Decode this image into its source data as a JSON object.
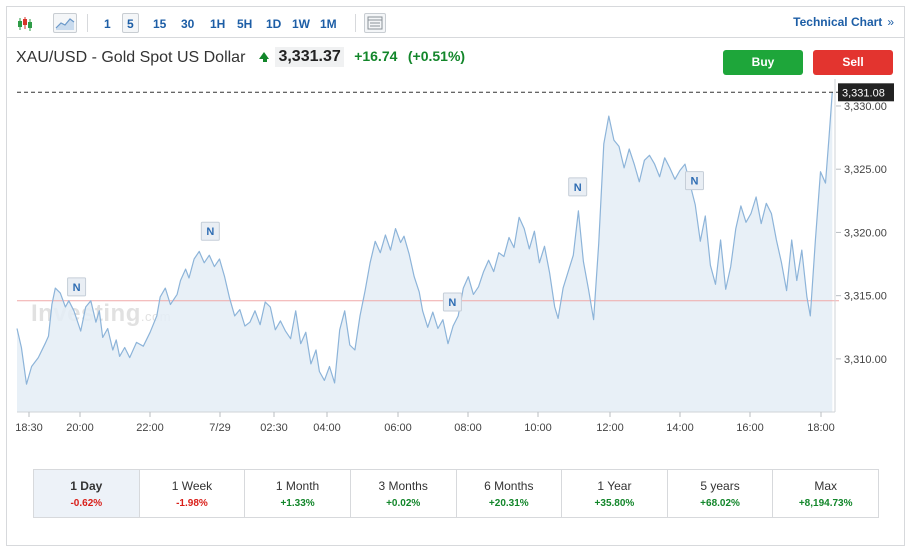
{
  "toolbar": {
    "chart_type_icon": "candlestick-icon",
    "area_icon": "area-chart-icon",
    "timeframes": [
      "1",
      "5",
      "15",
      "30",
      "1H",
      "5H",
      "1D",
      "1W",
      "1M"
    ],
    "active_timeframe": "5",
    "indicator_icon": "indicators-icon",
    "technical_chart_label": "Technical Chart",
    "technical_chart_chevron": "»"
  },
  "instrument": {
    "name": "XAU/USD - Gold Spot US Dollar",
    "price": "3,331.37",
    "change": "+16.74",
    "change_pct": "(+0.51%)"
  },
  "buttons": {
    "buy": "Buy",
    "sell": "Sell"
  },
  "watermark": {
    "main": "Investing",
    "suffix": ".com"
  },
  "news_marker_label": "N",
  "colors": {
    "accent": "#1d5ea6",
    "positive": "#12862a",
    "negative": "#d91e18",
    "buy": "#1ea63a",
    "sell": "#e3342f",
    "line": "#8db4d9",
    "area": "#e4edf6",
    "previous_close": "#f0a9a9"
  },
  "chart_data": {
    "type": "area",
    "x_tick_labels": [
      "18:30",
      "20:00",
      "22:00",
      "7/29",
      "02:30",
      "04:00",
      "06:00",
      "08:00",
      "10:00",
      "12:00",
      "14:00",
      "16:00",
      "18:00"
    ],
    "y_tick_labels": [
      "3,330.00",
      "3,325.00",
      "3,320.00",
      "3,315.00",
      "3,310.00"
    ],
    "ylim": [
      3305.8,
      3331.5
    ],
    "current_price_label": "3,331.08",
    "current_price": 3331.08,
    "previous_close": 3314.6,
    "x_range_hours": [
      18.17,
      42.3
    ],
    "series": [
      {
        "values": [
          [
            18.17,
            3312.4
          ],
          [
            18.3,
            3310.9
          ],
          [
            18.45,
            3308.0
          ],
          [
            18.6,
            3309.4
          ],
          [
            18.8,
            3310.1
          ],
          [
            19.0,
            3311.2
          ],
          [
            19.1,
            3311.8
          ],
          [
            19.2,
            3314.3
          ],
          [
            19.3,
            3315.6
          ],
          [
            19.45,
            3315.2
          ],
          [
            19.6,
            3314.1
          ],
          [
            19.7,
            3314.6
          ],
          [
            19.85,
            3313.8
          ],
          [
            19.95,
            3313.0
          ],
          [
            20.05,
            3312.2
          ],
          [
            20.2,
            3314.1
          ],
          [
            20.35,
            3314.6
          ],
          [
            20.5,
            3312.9
          ],
          [
            20.6,
            3313.8
          ],
          [
            20.7,
            3311.7
          ],
          [
            20.85,
            3312.4
          ],
          [
            21.0,
            3310.7
          ],
          [
            21.1,
            3311.5
          ],
          [
            21.2,
            3310.2
          ],
          [
            21.35,
            3310.9
          ],
          [
            21.5,
            3310.1
          ],
          [
            21.7,
            3311.3
          ],
          [
            21.9,
            3311.0
          ],
          [
            22.1,
            3312.1
          ],
          [
            22.3,
            3313.4
          ],
          [
            22.4,
            3314.9
          ],
          [
            22.55,
            3315.6
          ],
          [
            22.7,
            3314.3
          ],
          [
            22.9,
            3315.1
          ],
          [
            23.0,
            3316.2
          ],
          [
            23.15,
            3317.1
          ],
          [
            23.25,
            3316.4
          ],
          [
            23.4,
            3317.9
          ],
          [
            23.55,
            3318.5
          ],
          [
            23.7,
            3317.6
          ],
          [
            23.85,
            3318.2
          ],
          [
            24.0,
            3317.3
          ],
          [
            24.15,
            3317.9
          ],
          [
            24.3,
            3316.5
          ],
          [
            24.45,
            3314.8
          ],
          [
            24.6,
            3313.4
          ],
          [
            24.75,
            3313.9
          ],
          [
            24.9,
            3312.6
          ],
          [
            25.05,
            3312.9
          ],
          [
            25.2,
            3313.8
          ],
          [
            25.35,
            3312.7
          ],
          [
            25.5,
            3314.5
          ],
          [
            25.65,
            3314.1
          ],
          [
            25.8,
            3312.3
          ],
          [
            25.95,
            3313.0
          ],
          [
            26.1,
            3312.2
          ],
          [
            26.25,
            3311.6
          ],
          [
            26.4,
            3313.8
          ],
          [
            26.55,
            3311.2
          ],
          [
            26.7,
            3312.1
          ],
          [
            26.85,
            3309.6
          ],
          [
            27.0,
            3310.7
          ],
          [
            27.1,
            3309.0
          ],
          [
            27.25,
            3308.3
          ],
          [
            27.4,
            3309.4
          ],
          [
            27.55,
            3308.1
          ],
          [
            27.7,
            3312.3
          ],
          [
            27.85,
            3313.8
          ],
          [
            28.0,
            3311.1
          ],
          [
            28.15,
            3310.7
          ],
          [
            28.3,
            3313.4
          ],
          [
            28.45,
            3315.4
          ],
          [
            28.6,
            3317.6
          ],
          [
            28.75,
            3319.3
          ],
          [
            28.9,
            3318.4
          ],
          [
            29.05,
            3319.8
          ],
          [
            29.2,
            3318.6
          ],
          [
            29.35,
            3320.3
          ],
          [
            29.5,
            3319.2
          ],
          [
            29.6,
            3319.7
          ],
          [
            29.75,
            3318.3
          ],
          [
            29.9,
            3316.5
          ],
          [
            30.05,
            3315.3
          ],
          [
            30.15,
            3313.8
          ],
          [
            30.3,
            3312.5
          ],
          [
            30.45,
            3313.7
          ],
          [
            30.6,
            3312.4
          ],
          [
            30.75,
            3313.1
          ],
          [
            30.9,
            3311.2
          ],
          [
            31.05,
            3312.6
          ],
          [
            31.2,
            3313.4
          ],
          [
            31.35,
            3315.6
          ],
          [
            31.5,
            3316.5
          ],
          [
            31.65,
            3315.1
          ],
          [
            31.8,
            3315.7
          ],
          [
            31.95,
            3316.9
          ],
          [
            32.1,
            3317.8
          ],
          [
            32.25,
            3316.9
          ],
          [
            32.4,
            3318.4
          ],
          [
            32.55,
            3318.1
          ],
          [
            32.7,
            3319.6
          ],
          [
            32.85,
            3318.8
          ],
          [
            33.0,
            3321.2
          ],
          [
            33.15,
            3320.3
          ],
          [
            33.3,
            3318.7
          ],
          [
            33.45,
            3320.1
          ],
          [
            33.6,
            3317.6
          ],
          [
            33.75,
            3318.9
          ],
          [
            33.9,
            3316.8
          ],
          [
            34.05,
            3314.1
          ],
          [
            34.15,
            3313.2
          ],
          [
            34.3,
            3315.6
          ],
          [
            34.45,
            3316.9
          ],
          [
            34.6,
            3318.2
          ],
          [
            34.75,
            3321.7
          ],
          [
            34.9,
            3317.7
          ],
          [
            35.05,
            3315.5
          ],
          [
            35.2,
            3313.1
          ],
          [
            35.35,
            3319.1
          ],
          [
            35.5,
            3327.0
          ],
          [
            35.65,
            3329.2
          ],
          [
            35.8,
            3327.3
          ],
          [
            35.95,
            3326.8
          ],
          [
            36.1,
            3325.1
          ],
          [
            36.25,
            3326.6
          ],
          [
            36.4,
            3325.4
          ],
          [
            36.55,
            3324.0
          ],
          [
            36.7,
            3325.7
          ],
          [
            36.85,
            3326.1
          ],
          [
            37.0,
            3325.4
          ],
          [
            37.15,
            3324.4
          ],
          [
            37.3,
            3325.9
          ],
          [
            37.45,
            3325.1
          ],
          [
            37.6,
            3324.2
          ],
          [
            37.75,
            3324.9
          ],
          [
            37.9,
            3325.4
          ],
          [
            38.05,
            3323.8
          ],
          [
            38.2,
            3322.2
          ],
          [
            38.35,
            3319.3
          ],
          [
            38.5,
            3321.3
          ],
          [
            38.65,
            3317.4
          ],
          [
            38.8,
            3315.9
          ],
          [
            38.95,
            3319.4
          ],
          [
            39.1,
            3315.5
          ],
          [
            39.25,
            3317.3
          ],
          [
            39.4,
            3320.3
          ],
          [
            39.55,
            3322.1
          ],
          [
            39.7,
            3320.8
          ],
          [
            39.85,
            3321.5
          ],
          [
            40.0,
            3322.8
          ],
          [
            40.15,
            3320.7
          ],
          [
            40.3,
            3322.3
          ],
          [
            40.45,
            3321.5
          ],
          [
            40.6,
            3319.4
          ],
          [
            40.75,
            3317.6
          ],
          [
            40.9,
            3315.4
          ],
          [
            41.05,
            3319.4
          ],
          [
            41.2,
            3316.2
          ],
          [
            41.35,
            3318.6
          ],
          [
            41.5,
            3314.9
          ],
          [
            41.6,
            3313.4
          ],
          [
            41.75,
            3319.4
          ],
          [
            41.9,
            3324.8
          ],
          [
            42.05,
            3323.9
          ],
          [
            42.15,
            3327.4
          ],
          [
            42.25,
            3331.1
          ]
        ]
      }
    ],
    "news_markers_at_hours": [
      19.9,
      23.85,
      31.0,
      34.7,
      38.15
    ]
  },
  "periods": [
    {
      "label": "1 Day",
      "value": "-0.62%",
      "dir": "neg",
      "active": true
    },
    {
      "label": "1 Week",
      "value": "-1.98%",
      "dir": "neg",
      "active": false
    },
    {
      "label": "1 Month",
      "value": "+1.33%",
      "dir": "pos",
      "active": false
    },
    {
      "label": "3 Months",
      "value": "+0.02%",
      "dir": "pos",
      "active": false
    },
    {
      "label": "6 Months",
      "value": "+20.31%",
      "dir": "pos",
      "active": false
    },
    {
      "label": "1 Year",
      "value": "+35.80%",
      "dir": "pos",
      "active": false
    },
    {
      "label": "5 years",
      "value": "+68.02%",
      "dir": "pos",
      "active": false
    },
    {
      "label": "Max",
      "value": "+8,194.73%",
      "dir": "pos",
      "active": false
    }
  ]
}
